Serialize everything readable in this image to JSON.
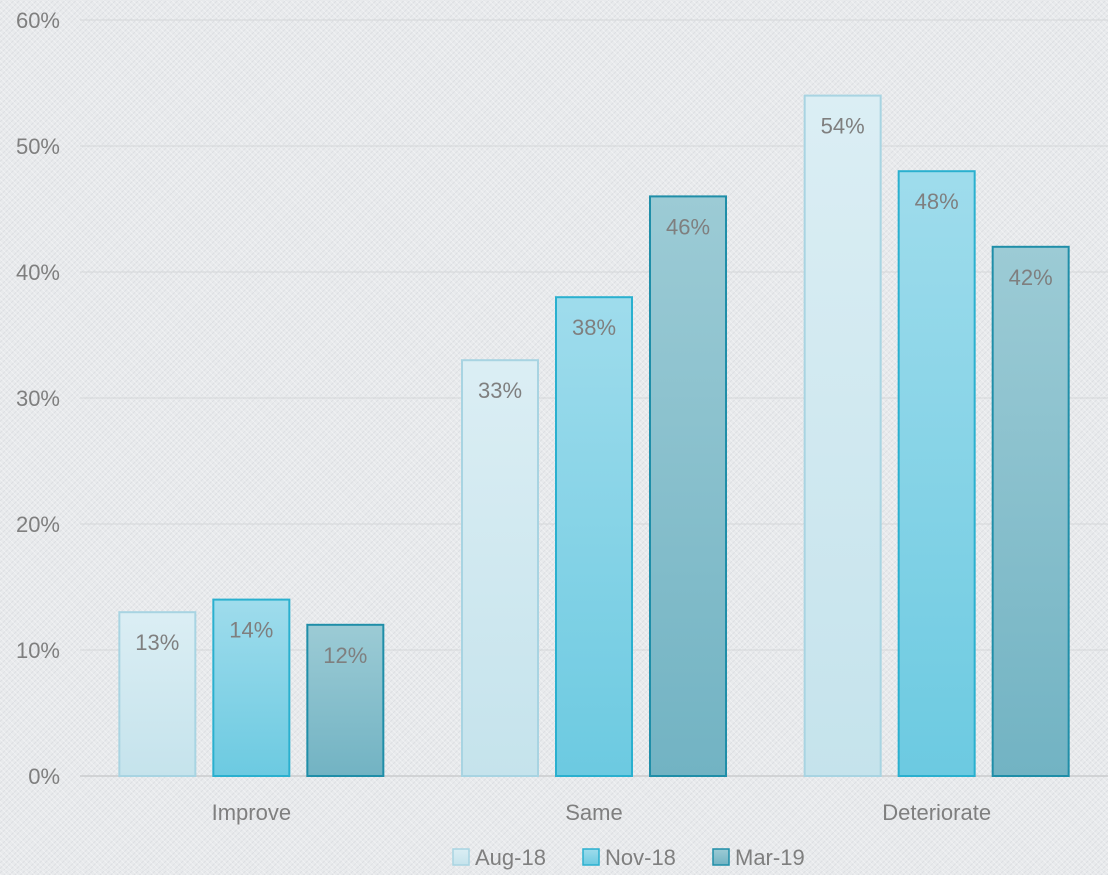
{
  "chart_data": {
    "type": "bar",
    "title": "",
    "xlabel": "",
    "ylabel": "",
    "categories": [
      "Improve",
      "Same",
      "Deteriorate"
    ],
    "series": [
      {
        "name": "Aug-18",
        "values": [
          13,
          33,
          54
        ],
        "fill_top": "#dbeef4",
        "fill_bottom": "#c5e3ec",
        "stroke": "#a8d4e2"
      },
      {
        "name": "Nov-18",
        "values": [
          14,
          38,
          48
        ],
        "fill_top": "#9fdcec",
        "fill_bottom": "#6ccae1",
        "stroke": "#2ab0cf"
      },
      {
        "name": "Mar-19",
        "values": [
          12,
          46,
          42
        ],
        "fill_top": "#9ccbd5",
        "fill_bottom": "#72b3c3",
        "stroke": "#1f8ea8"
      }
    ],
    "data_labels": [
      [
        "13%",
        "33%",
        "54%"
      ],
      [
        "14%",
        "38%",
        "48%"
      ],
      [
        "12%",
        "46%",
        "42%"
      ]
    ],
    "ylim": [
      0,
      60
    ],
    "yticks": [
      0,
      10,
      20,
      30,
      40,
      50,
      60
    ],
    "ytick_labels": [
      "0%",
      "10%",
      "20%",
      "30%",
      "40%",
      "50%",
      "60%"
    ],
    "grid": true,
    "legend_position": "bottom"
  }
}
